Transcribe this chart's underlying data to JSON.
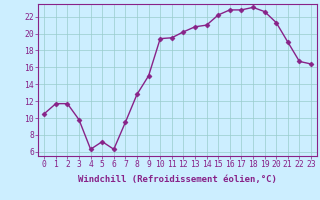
{
  "x": [
    0,
    1,
    2,
    3,
    4,
    5,
    6,
    7,
    8,
    9,
    10,
    11,
    12,
    13,
    14,
    15,
    16,
    17,
    18,
    19,
    20,
    21,
    22,
    23
  ],
  "y": [
    10.5,
    11.7,
    11.7,
    9.8,
    6.3,
    7.2,
    6.3,
    9.5,
    12.8,
    15.0,
    19.4,
    19.5,
    20.2,
    20.8,
    21.0,
    22.2,
    22.8,
    22.8,
    23.1,
    22.6,
    21.3,
    19.0,
    16.7,
    16.4
  ],
  "line_color": "#882288",
  "marker": "D",
  "marker_size": 2.5,
  "background_color": "#cceeff",
  "grid_color": "#99cccc",
  "xlabel": "Windchill (Refroidissement éolien,°C)",
  "xlim": [
    -0.5,
    23.5
  ],
  "ylim": [
    5.5,
    23.5
  ],
  "yticks": [
    6,
    8,
    10,
    12,
    14,
    16,
    18,
    20,
    22
  ],
  "xticks": [
    0,
    1,
    2,
    3,
    4,
    5,
    6,
    7,
    8,
    9,
    10,
    11,
    12,
    13,
    14,
    15,
    16,
    17,
    18,
    19,
    20,
    21,
    22,
    23
  ],
  "tick_label_fontsize": 5.8,
  "xlabel_fontsize": 6.5,
  "line_width": 1.0
}
